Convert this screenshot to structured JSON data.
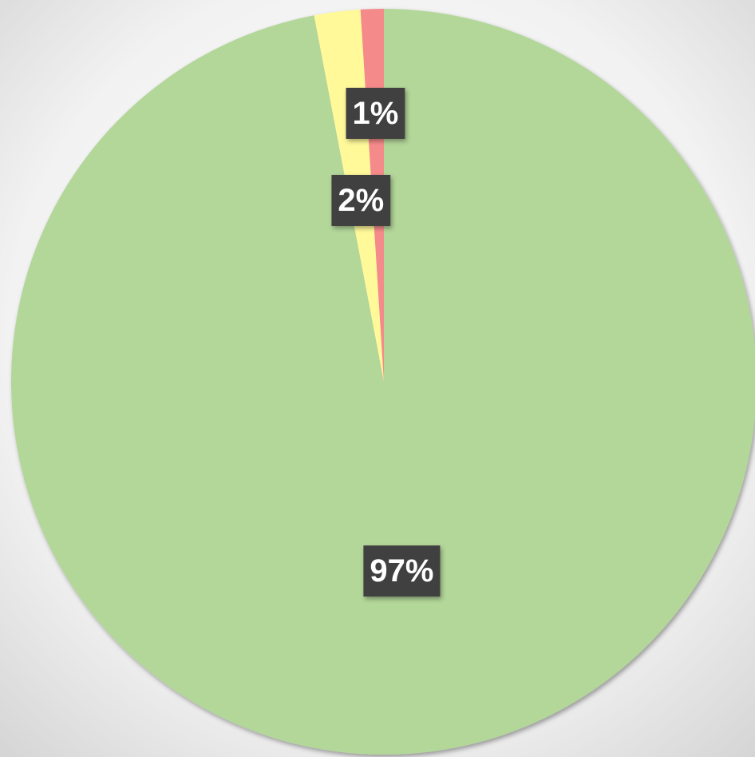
{
  "chart_data": {
    "type": "pie",
    "values": [
      97,
      2,
      1
    ],
    "value_labels": [
      "97%",
      "2%",
      "1%"
    ],
    "colors": [
      "#b3d699",
      "#fff99a",
      "#f58a8a"
    ]
  }
}
